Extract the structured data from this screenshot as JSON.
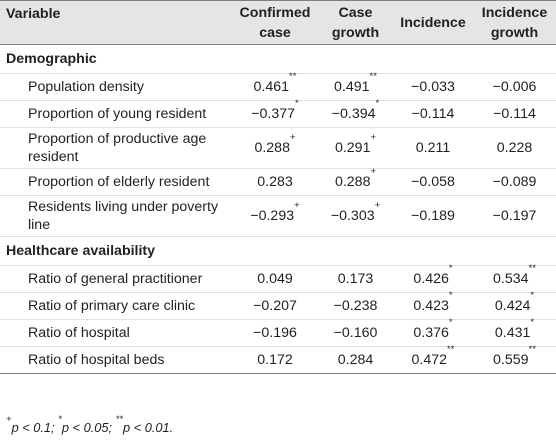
{
  "header": {
    "variable": "Variable",
    "confirmed_case": "Confirmed case",
    "case_growth": "Case growth",
    "incidence": "Incidence",
    "incidence_growth": "Incidence growth"
  },
  "sections": [
    {
      "title": "Demographic",
      "rows": [
        {
          "label": "Population density",
          "v1": "0.461",
          "s1": "**",
          "v2": "0.491",
          "s2": "**",
          "v3": "−0.033",
          "s3": "",
          "v4": "−0.006",
          "s4": ""
        },
        {
          "label": "Proportion of young resident",
          "v1": "−0.377",
          "s1": "*",
          "v2": "−0.394",
          "s2": "*",
          "v3": "−0.114",
          "s3": "",
          "v4": "−0.114",
          "s4": ""
        },
        {
          "label": "Proportion of productive age resident",
          "v1": "0.288",
          "s1": "+",
          "v2": "0.291",
          "s2": "+",
          "v3": "0.211",
          "s3": "",
          "v4": "0.228",
          "s4": ""
        },
        {
          "label": "Proportion of elderly resident",
          "v1": "0.283",
          "s1": "",
          "v2": "0.288",
          "s2": "+",
          "v3": "−0.058",
          "s3": "",
          "v4": "−0.089",
          "s4": ""
        },
        {
          "label": "Residents living under poverty line",
          "v1": "−0.293",
          "s1": "+",
          "v2": "−0.303",
          "s2": "+",
          "v3": "−0.189",
          "s3": "",
          "v4": "−0.197",
          "s4": ""
        }
      ]
    },
    {
      "title": "Healthcare availability",
      "rows": [
        {
          "label": "Ratio of general practitioner",
          "v1": "0.049",
          "s1": "",
          "v2": "0.173",
          "s2": "",
          "v3": "0.426",
          "s3": "*",
          "v4": "0.534",
          "s4": "**"
        },
        {
          "label": "Ratio of primary care clinic",
          "v1": "−0.207",
          "s1": "",
          "v2": "−0.238",
          "s2": "",
          "v3": "0.423",
          "s3": "*",
          "v4": "0.424",
          "s4": "*"
        },
        {
          "label": "Ratio of hospital",
          "v1": "−0.196",
          "s1": "",
          "v2": "−0.160",
          "s2": "",
          "v3": "0.376",
          "s3": "*",
          "v4": "0.431",
          "s4": "*"
        },
        {
          "label": "Ratio of hospital beds",
          "v1": "0.172",
          "s1": "",
          "v2": "0.284",
          "s2": "",
          "v3": "0.472",
          "s3": "**",
          "v4": "0.559",
          "s4": "**"
        }
      ]
    }
  ],
  "footnote": {
    "plus": "+",
    "text1": "p < 0.1; ",
    "star": "*",
    "text2": "p < 0.05; ",
    "stars": "**",
    "text3": "p < 0.01."
  }
}
